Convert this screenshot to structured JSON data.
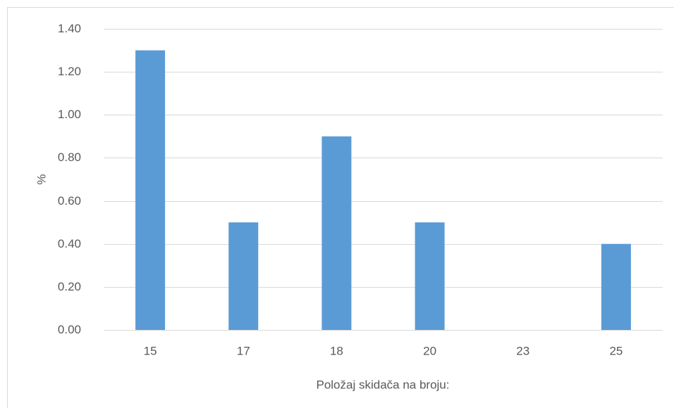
{
  "chart_data": {
    "type": "bar",
    "categories": [
      "15",
      "17",
      "18",
      "20",
      "23",
      "25"
    ],
    "values": [
      1.3,
      0.5,
      0.9,
      0.5,
      0,
      0.4
    ],
    "color": "#5b9bd5",
    "xlabel": "Položaj skidača na broju:",
    "ylabel": "%",
    "ylim": [
      0,
      1.4
    ],
    "yticks": [
      {
        "value": 0,
        "label": "0.00"
      },
      {
        "value": 0.2,
        "label": "0.20"
      },
      {
        "value": 0.4,
        "label": "0.40"
      },
      {
        "value": 0.6,
        "label": "0.60"
      },
      {
        "value": 0.8,
        "label": "0.80"
      },
      {
        "value": 1.0,
        "label": "1.00"
      },
      {
        "value": 1.2,
        "label": "1.20"
      },
      {
        "value": 1.4,
        "label": "1.40"
      }
    ],
    "grid": true
  }
}
